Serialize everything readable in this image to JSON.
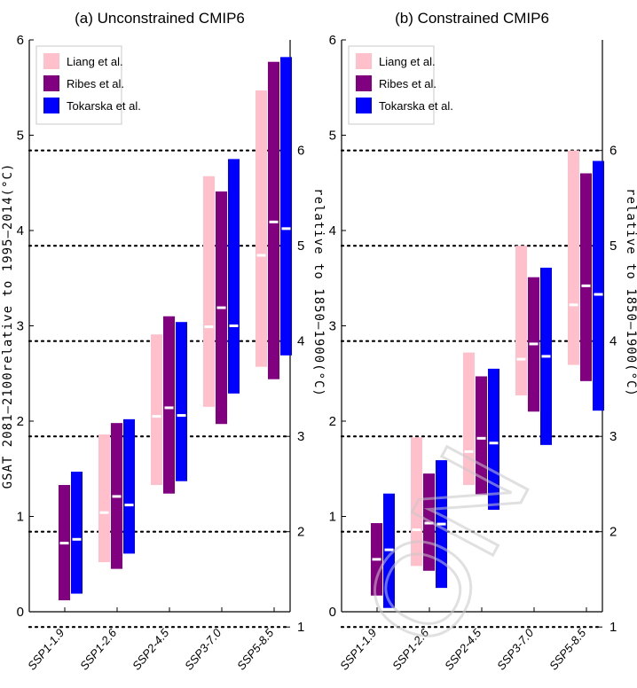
{
  "watermark": "ON",
  "colors": {
    "Liang et al.": "#ffc0cb",
    "Ribes et al.": "#800080",
    "Tokarska et al.": "#0000ff",
    "median_mark": "#ffffff",
    "dotted": "#000000"
  },
  "chart_data": [
    {
      "type": "bar",
      "subtype": "range-bar-with-median",
      "title": "(a) Unconstrained CMIP6",
      "ylabel": "GSAT 2081–2100relative to 1995–2014(°C)",
      "ylabel_right": "relative to 1850–1900(°C)",
      "ylim": [
        0,
        6
      ],
      "yticks": [
        "0",
        "1",
        "2",
        "3",
        "4",
        "5",
        "6"
      ],
      "yticks_right": [
        "1",
        "2",
        "3",
        "4",
        "5",
        "6"
      ],
      "dotted_lines_right_axis": [
        1,
        2,
        3,
        4,
        5,
        6
      ],
      "legend_position": "top-left",
      "categories": [
        "SSP1-1.9",
        "SSP1-2.6",
        "SSP2-4.5",
        "SSP3-7.0",
        "SSP5-8.5"
      ],
      "series": [
        {
          "name": "Liang et al.",
          "low": [
            null,
            0.52,
            1.33,
            2.15,
            2.57
          ],
          "median": [
            null,
            1.04,
            2.05,
            2.99,
            3.74
          ],
          "high": [
            null,
            1.86,
            2.91,
            4.57,
            5.47
          ]
        },
        {
          "name": "Ribes et al.",
          "low": [
            0.12,
            0.45,
            1.24,
            1.97,
            2.44
          ],
          "median": [
            0.72,
            1.21,
            2.14,
            3.19,
            4.09
          ],
          "high": [
            1.33,
            1.98,
            3.1,
            4.41,
            5.77
          ]
        },
        {
          "name": "Tokarska et al.",
          "low": [
            0.19,
            0.61,
            1.37,
            2.29,
            2.69
          ],
          "median": [
            0.76,
            1.12,
            2.06,
            3.0,
            4.02
          ],
          "high": [
            1.47,
            2.02,
            3.04,
            4.75,
            5.82
          ]
        }
      ]
    },
    {
      "type": "bar",
      "subtype": "range-bar-with-median",
      "title": "(b) Constrained CMIP6",
      "ylabel_right": "relative to 1850–1900(°C)",
      "ylim": [
        0,
        6
      ],
      "yticks": [
        "0",
        "1",
        "2",
        "3",
        "4",
        "5",
        "6"
      ],
      "yticks_right": [
        "1",
        "2",
        "3",
        "4",
        "5",
        "6"
      ],
      "dotted_lines_right_axis": [
        1,
        2,
        3,
        4,
        5,
        6
      ],
      "legend_position": "top-left",
      "categories": [
        "SSP1-1.9",
        "SSP1-2.6",
        "SSP2-4.5",
        "SSP3-7.0",
        "SSP5-8.5"
      ],
      "series": [
        {
          "name": "Liang et al.",
          "low": [
            null,
            0.48,
            1.33,
            2.27,
            2.59
          ],
          "median": [
            null,
            0.86,
            1.68,
            2.65,
            3.22
          ],
          "high": [
            null,
            1.83,
            2.72,
            3.84,
            4.84
          ]
        },
        {
          "name": "Ribes et al.",
          "low": [
            0.17,
            0.43,
            1.23,
            2.1,
            2.42
          ],
          "median": [
            0.55,
            0.93,
            1.82,
            2.81,
            3.42
          ],
          "high": [
            0.93,
            1.45,
            2.47,
            3.51,
            4.6
          ]
        },
        {
          "name": "Tokarska et al.",
          "low": [
            0.04,
            0.25,
            1.07,
            1.75,
            2.11
          ],
          "median": [
            0.65,
            0.92,
            1.77,
            2.68,
            3.33
          ],
          "high": [
            1.24,
            1.59,
            2.55,
            3.61,
            4.73
          ]
        }
      ]
    }
  ]
}
